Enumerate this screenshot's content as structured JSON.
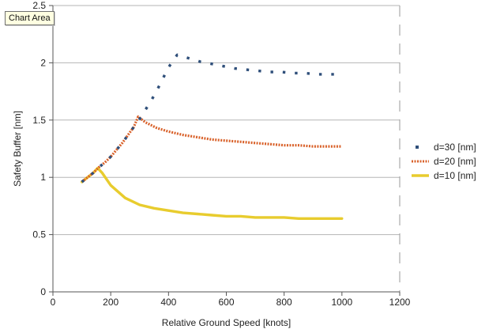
{
  "tooltip": "Chart Area",
  "chart_data": {
    "type": "line",
    "xlabel": "Relative Ground Speed [knots]",
    "ylabel": "Safety Buffer [nm]",
    "xlim": [
      0,
      1200
    ],
    "ylim": [
      0,
      2.5
    ],
    "x_ticks": [
      0,
      200,
      400,
      600,
      800,
      1000,
      1200
    ],
    "y_ticks": [
      0,
      0.5,
      1,
      1.5,
      2,
      2.5
    ],
    "grid": "horizontal",
    "legend_position": "right",
    "series": [
      {
        "name": "d=30 [nm]",
        "style": "dotted",
        "color": "#2f4f7a",
        "x": [
          100,
          120,
          140,
          160,
          180,
          200,
          220,
          240,
          260,
          280,
          300,
          320,
          340,
          360,
          380,
          400,
          430,
          470,
          510,
          550,
          590,
          630,
          670,
          710,
          750,
          790,
          830,
          870,
          910,
          950,
          975
        ],
        "y": [
          0.96,
          1.0,
          1.04,
          1.09,
          1.13,
          1.18,
          1.24,
          1.3,
          1.37,
          1.44,
          1.51,
          1.59,
          1.67,
          1.76,
          1.86,
          1.96,
          2.07,
          2.04,
          2.01,
          1.99,
          1.97,
          1.95,
          1.94,
          1.93,
          1.92,
          1.92,
          1.91,
          1.91,
          1.9,
          1.9,
          1.9
        ]
      },
      {
        "name": "d=20 [nm]",
        "style": "dashed",
        "color": "#d9622b",
        "x": [
          100,
          120,
          140,
          160,
          180,
          200,
          220,
          240,
          260,
          280,
          295,
          320,
          360,
          400,
          450,
          500,
          550,
          600,
          650,
          700,
          750,
          800,
          850,
          900,
          950,
          1000
        ],
        "y": [
          0.96,
          1.0,
          1.04,
          1.09,
          1.13,
          1.18,
          1.24,
          1.3,
          1.37,
          1.44,
          1.53,
          1.48,
          1.43,
          1.4,
          1.37,
          1.35,
          1.33,
          1.32,
          1.31,
          1.3,
          1.29,
          1.28,
          1.28,
          1.27,
          1.27,
          1.27
        ]
      },
      {
        "name": "d=10 [nm]",
        "style": "solid",
        "color": "#e8cc2e",
        "x": [
          100,
          120,
          140,
          155,
          170,
          200,
          250,
          300,
          350,
          400,
          450,
          500,
          550,
          600,
          650,
          700,
          750,
          800,
          850,
          900,
          950,
          1000
        ],
        "y": [
          0.96,
          1.0,
          1.04,
          1.08,
          1.04,
          0.93,
          0.82,
          0.76,
          0.73,
          0.71,
          0.69,
          0.68,
          0.67,
          0.66,
          0.66,
          0.65,
          0.65,
          0.65,
          0.64,
          0.64,
          0.64,
          0.64
        ]
      }
    ]
  }
}
